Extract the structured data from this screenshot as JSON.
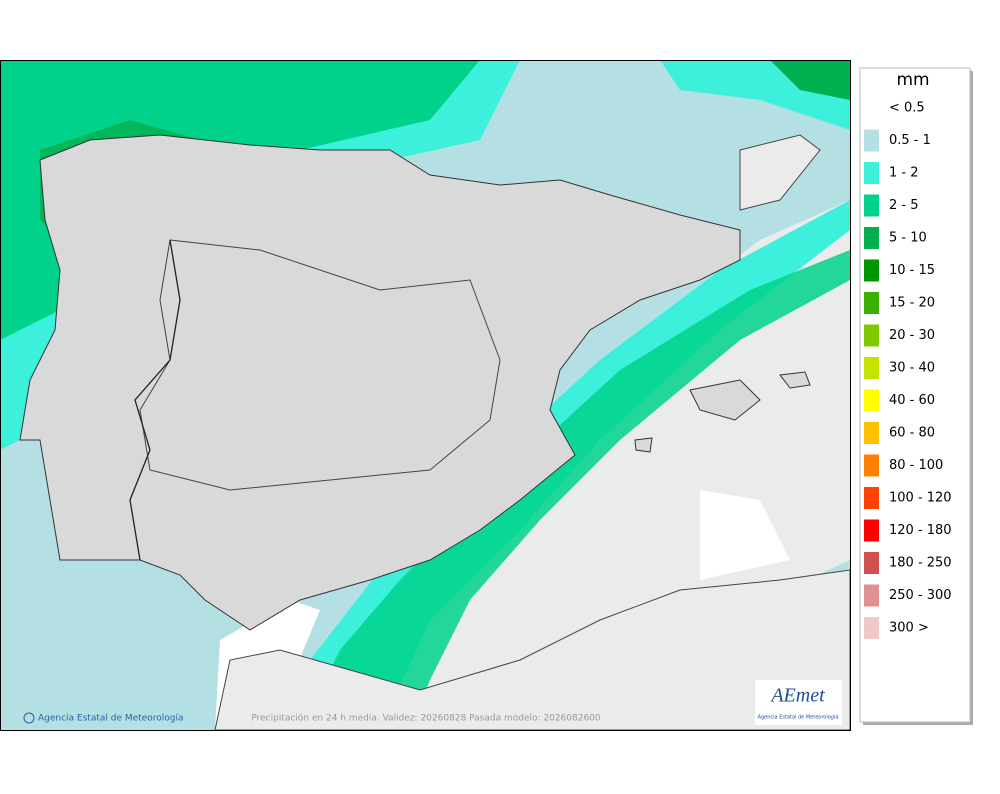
{
  "map": {
    "footer_left": "Agencia Estatal de Meteorología",
    "footer_center": "Precipitación en 24 h media. Validez: 20260828 Pasada modelo: 2026082600",
    "logo_text": "AEmet",
    "logo_subtext": "Agencia Estatal de Meteorología"
  },
  "legend": {
    "title": "mm",
    "items": [
      {
        "label": "< 0.5",
        "color": "#ffffff"
      },
      {
        "label": "0.5 - 1",
        "color": "#b4e0e4"
      },
      {
        "label": "1 - 2",
        "color": "#3cf0dc"
      },
      {
        "label": "2 - 5",
        "color": "#00d28c"
      },
      {
        "label": "5 - 10",
        "color": "#00b050"
      },
      {
        "label": "10 - 15",
        "color": "#009600"
      },
      {
        "label": "15 - 20",
        "color": "#3cb000"
      },
      {
        "label": "20 - 30",
        "color": "#82c800"
      },
      {
        "label": "30 - 40",
        "color": "#c4e400"
      },
      {
        "label": "40 - 60",
        "color": "#ffff00"
      },
      {
        "label": "60 - 80",
        "color": "#ffc000"
      },
      {
        "label": "80 - 100",
        "color": "#ff8000"
      },
      {
        "label": "100 - 120",
        "color": "#ff4000"
      },
      {
        "label": "120 - 180",
        "color": "#ff0000"
      },
      {
        "label": "180 - 250",
        "color": "#d05050"
      },
      {
        "label": "250 - 300",
        "color": "#e09090"
      },
      {
        "label": "300 >",
        "color": "#f0c8c8"
      }
    ]
  }
}
